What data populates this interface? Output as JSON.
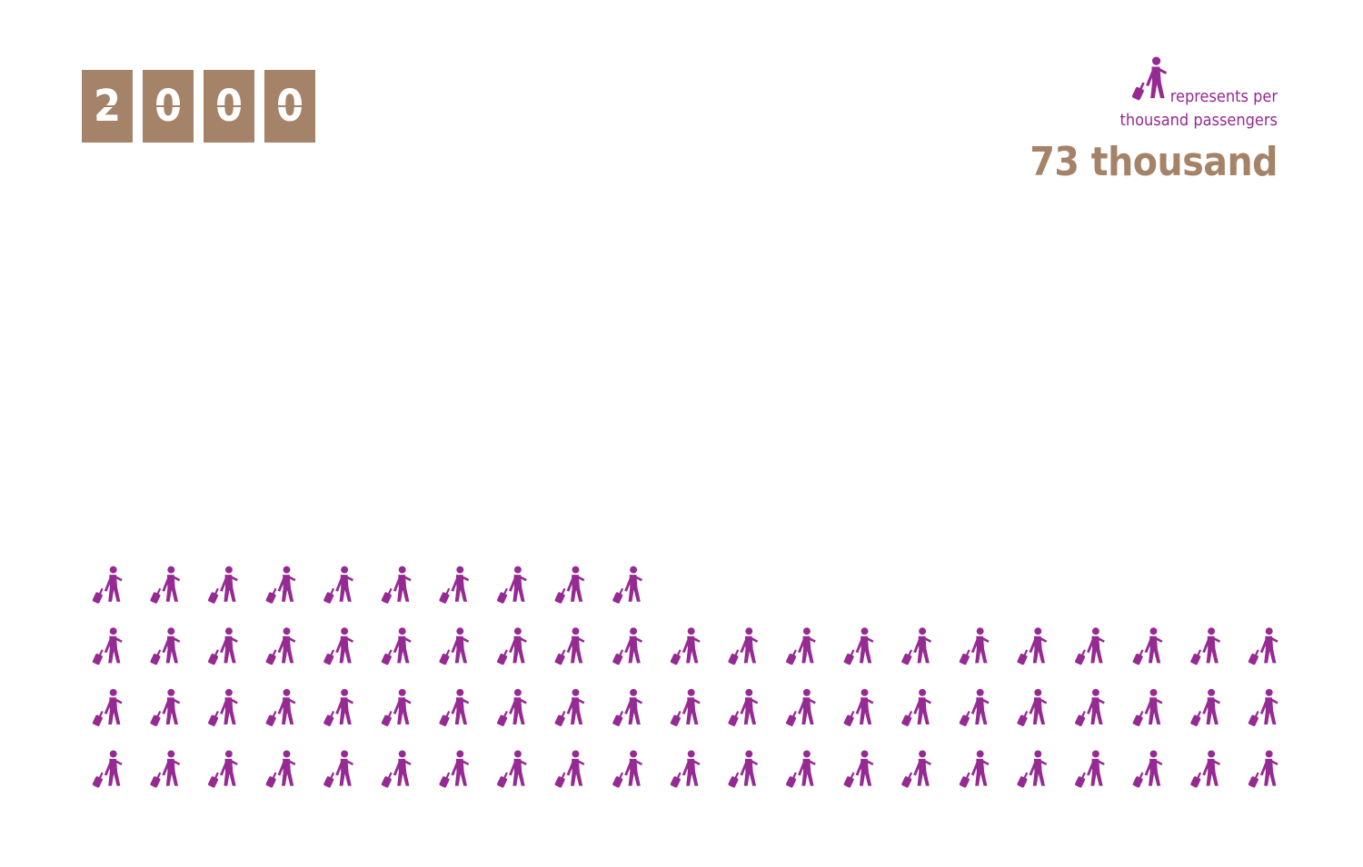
{
  "chart_data": {
    "type": "pictogram",
    "year": "2000",
    "unit_label_line1": "represents per",
    "unit_label_line2": "thousand passengers",
    "total_label": "73 thousand",
    "value": 73,
    "per_row": 21,
    "icon": "traveler-with-suitcase-icon"
  },
  "colors": {
    "icon": "#952a93",
    "accent": "#a58369",
    "background": "#ffffff"
  }
}
